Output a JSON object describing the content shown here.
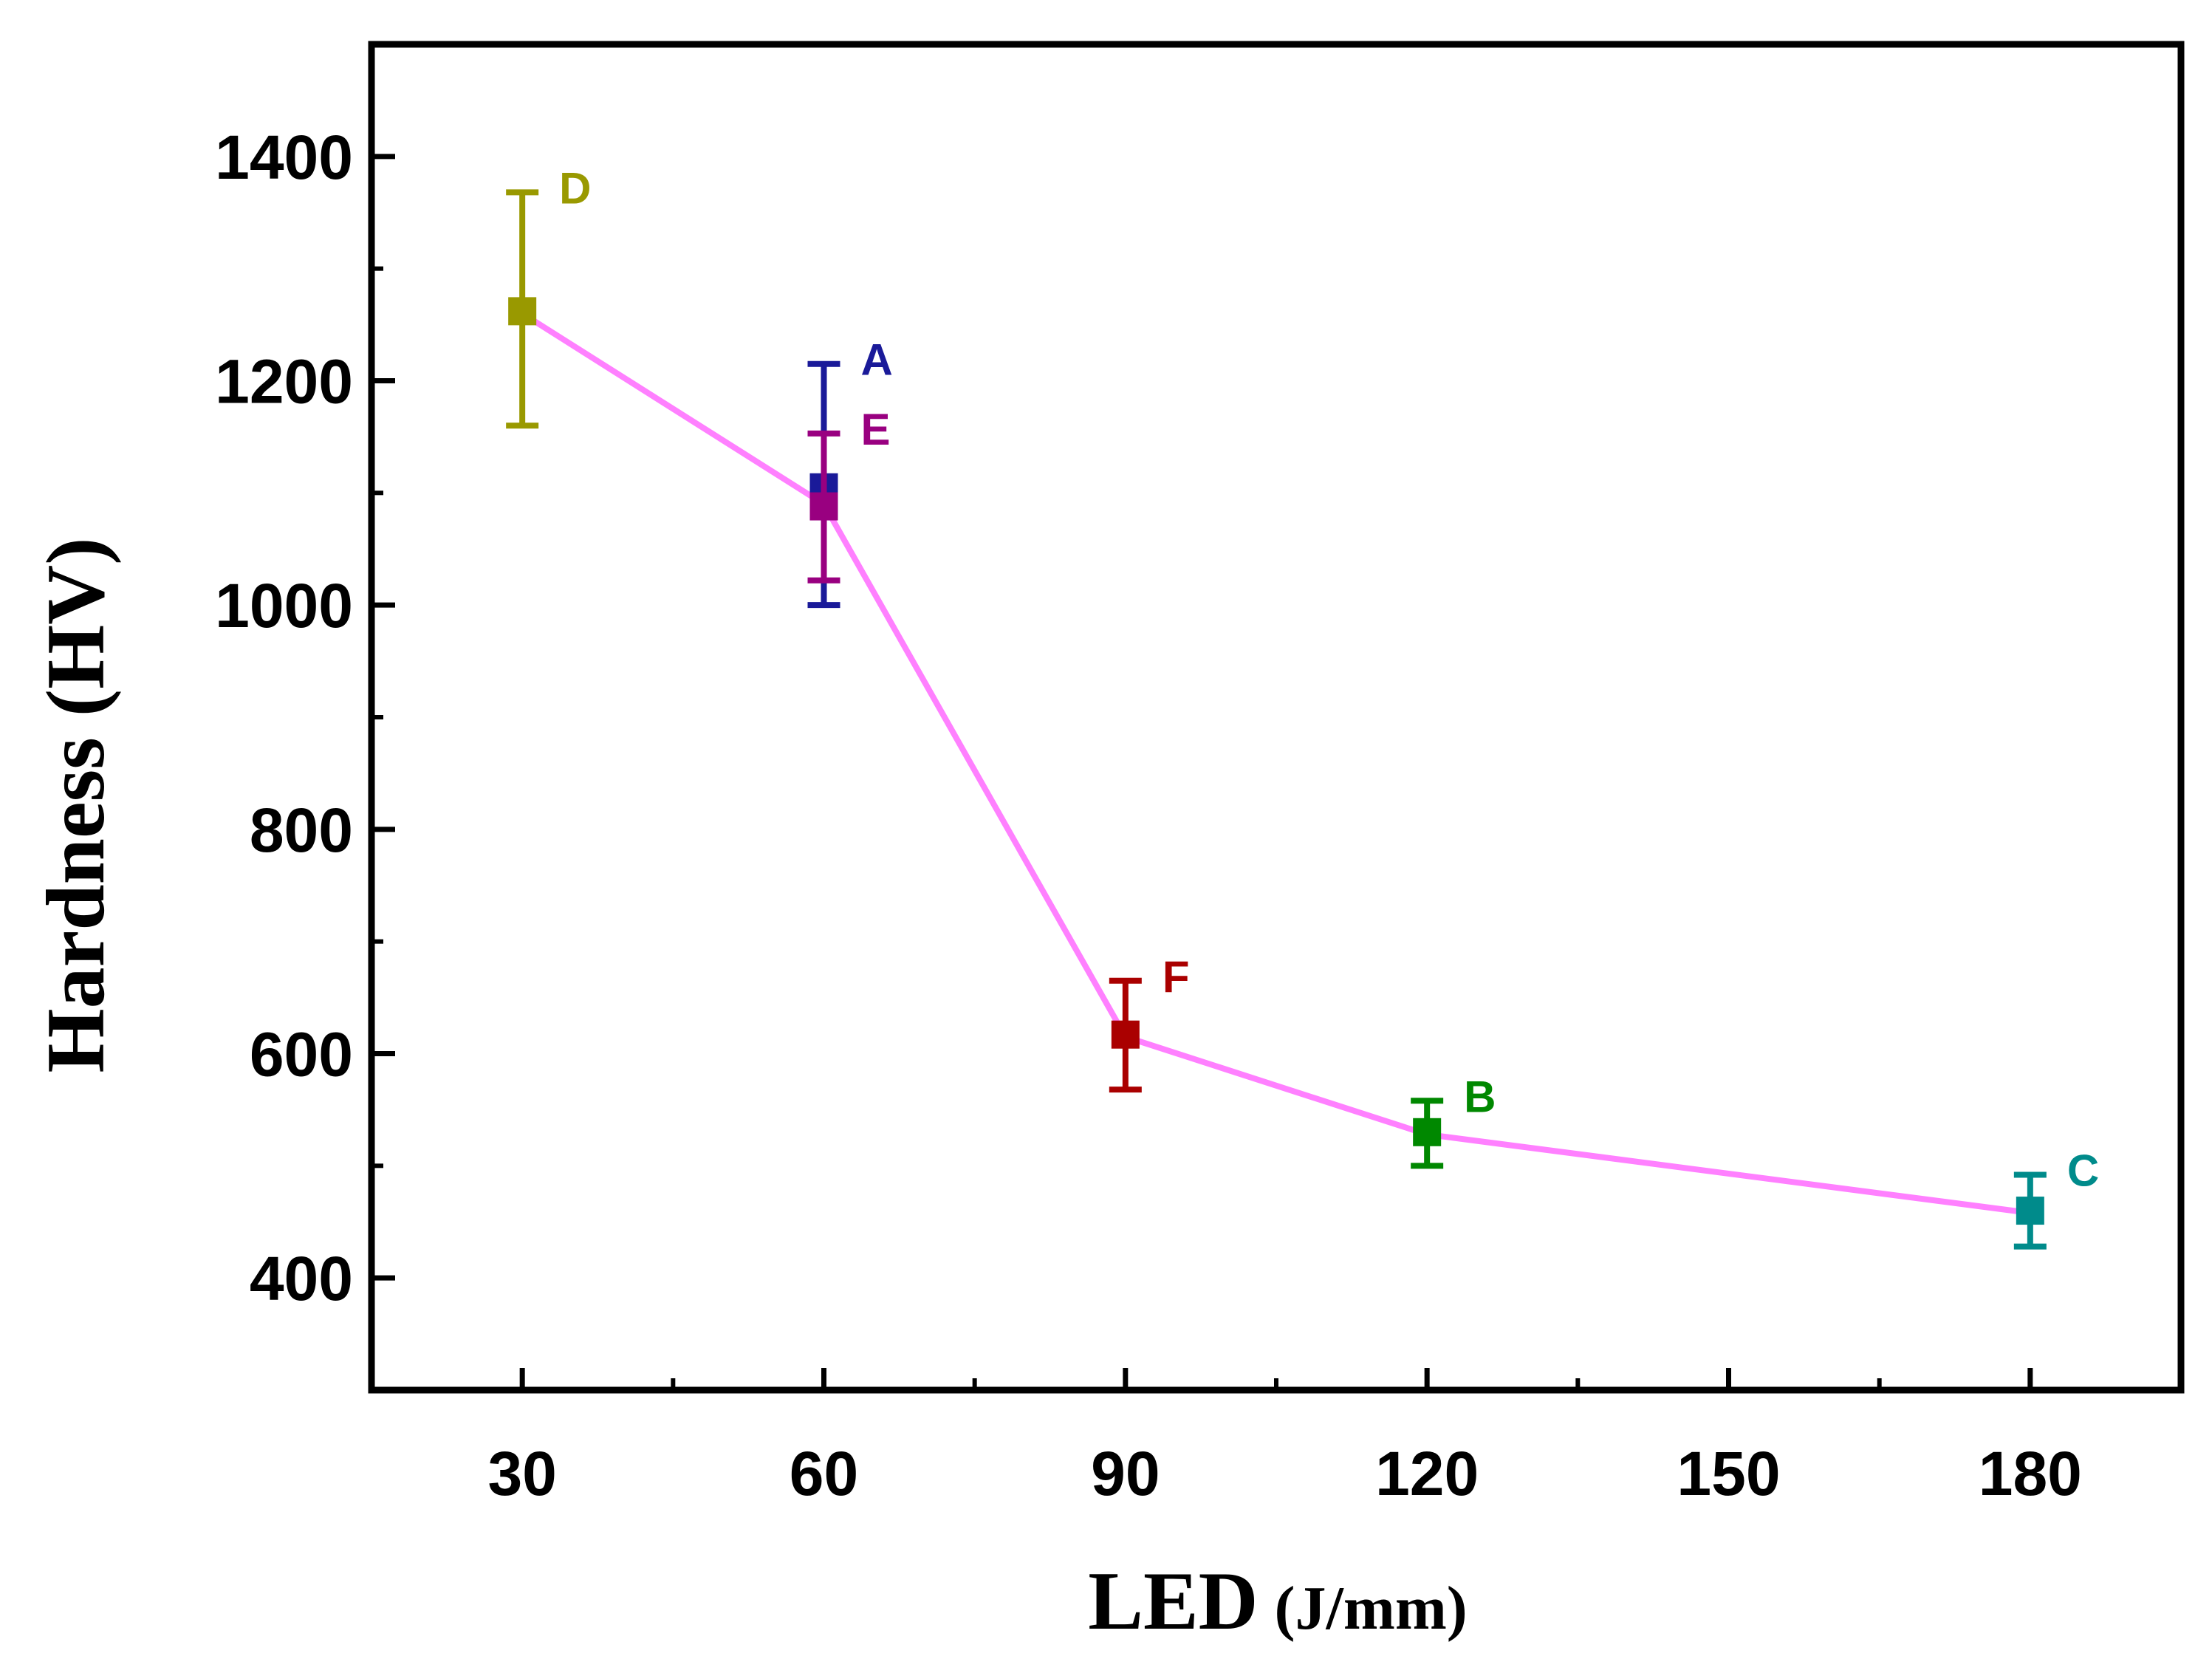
{
  "chart_data": {
    "type": "line",
    "xlabel": "LED",
    "xlabel_unit": "(J/mm)",
    "ylabel": "Hardness (HV)",
    "xlim": [
      15,
      195
    ],
    "ylim": [
      300,
      1500
    ],
    "x_ticks": [
      30,
      60,
      90,
      120,
      150,
      180
    ],
    "x_tick_labels": [
      "30",
      "60",
      "90",
      "120",
      "150",
      "180"
    ],
    "x_minor_ticks": [
      45,
      75,
      105,
      135,
      165
    ],
    "y_ticks": [
      400,
      600,
      800,
      1000,
      1200,
      1400
    ],
    "y_tick_labels": [
      "400",
      "600",
      "800",
      "1000",
      "1200",
      "1400"
    ],
    "y_minor_ticks": [
      500,
      700,
      900,
      1100,
      1300
    ],
    "line": {
      "color": "#ff80ff",
      "x": [
        30,
        60,
        90,
        120,
        180
      ],
      "y": [
        1260,
        1090,
        615,
        528,
        458
      ]
    },
    "points": [
      {
        "label": "D",
        "x": 30,
        "y": 1262,
        "err_low": 1160,
        "err_high": 1368,
        "color": "#999900"
      },
      {
        "label": "A",
        "x": 60,
        "y": 1105,
        "err_low": 1000,
        "err_high": 1215,
        "color": "#1a1a99"
      },
      {
        "label": "E",
        "x": 60,
        "y": 1088,
        "err_low": 1022,
        "err_high": 1153,
        "color": "#990080"
      },
      {
        "label": "F",
        "x": 90,
        "y": 617,
        "err_low": 568,
        "err_high": 665,
        "color": "#aa0000"
      },
      {
        "label": "B",
        "x": 120,
        "y": 530,
        "err_low": 500,
        "err_high": 558,
        "color": "#008800"
      },
      {
        "label": "C",
        "x": 180,
        "y": 460,
        "err_low": 428,
        "err_high": 492,
        "color": "#008b8b"
      }
    ]
  }
}
